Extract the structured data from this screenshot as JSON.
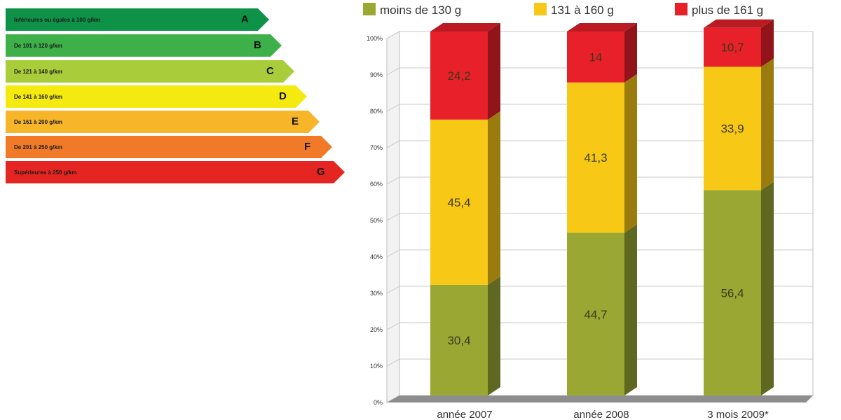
{
  "energy_labels": [
    {
      "text": "Inférieures ou égales à 100 g/km",
      "letter": "A",
      "color": "#0e9247"
    },
    {
      "text": "De 101 à 120 g/km",
      "letter": "B",
      "color": "#3db04a"
    },
    {
      "text": "De 121 à 140 g/km",
      "letter": "C",
      "color": "#a8cc3a"
    },
    {
      "text": "De 141 à 160 g/km",
      "letter": "D",
      "color": "#f4ea0f"
    },
    {
      "text": "De 161 à 200 g/km",
      "letter": "E",
      "color": "#f7b52a"
    },
    {
      "text": "De 201 à 250 g/km",
      "letter": "F",
      "color": "#f07a28"
    },
    {
      "text": "Supérieures à 250 g/km",
      "letter": "G",
      "color": "#e52521"
    }
  ],
  "chart_data": {
    "type": "bar",
    "stacked": true,
    "percent_axis": true,
    "categories": [
      "année 2007",
      "année 2008",
      "3 mois 2009*"
    ],
    "series": [
      {
        "name": "moins de 130 g",
        "color": "#9aa833",
        "values": [
          30.4,
          44.7,
          56.4
        ]
      },
      {
        "name": "131 à 160 g",
        "color": "#f7c815",
        "values": [
          45.4,
          41.3,
          33.9
        ]
      },
      {
        "name": "plus de 161 g",
        "color": "#e8202a",
        "values": [
          24.2,
          14,
          10.7
        ]
      }
    ],
    "value_labels": [
      [
        "30,4",
        "44,7",
        "56,4"
      ],
      [
        "45,4",
        "41,3",
        "33,9"
      ],
      [
        "24,2",
        "14",
        "10,7"
      ]
    ],
    "yticks": [
      "0%",
      "10%",
      "20%",
      "30%",
      "40%",
      "50%",
      "60%",
      "70%",
      "80%",
      "90%",
      "100%"
    ],
    "ylim": [
      0,
      100
    ],
    "grid": true,
    "legend_position": "top"
  }
}
